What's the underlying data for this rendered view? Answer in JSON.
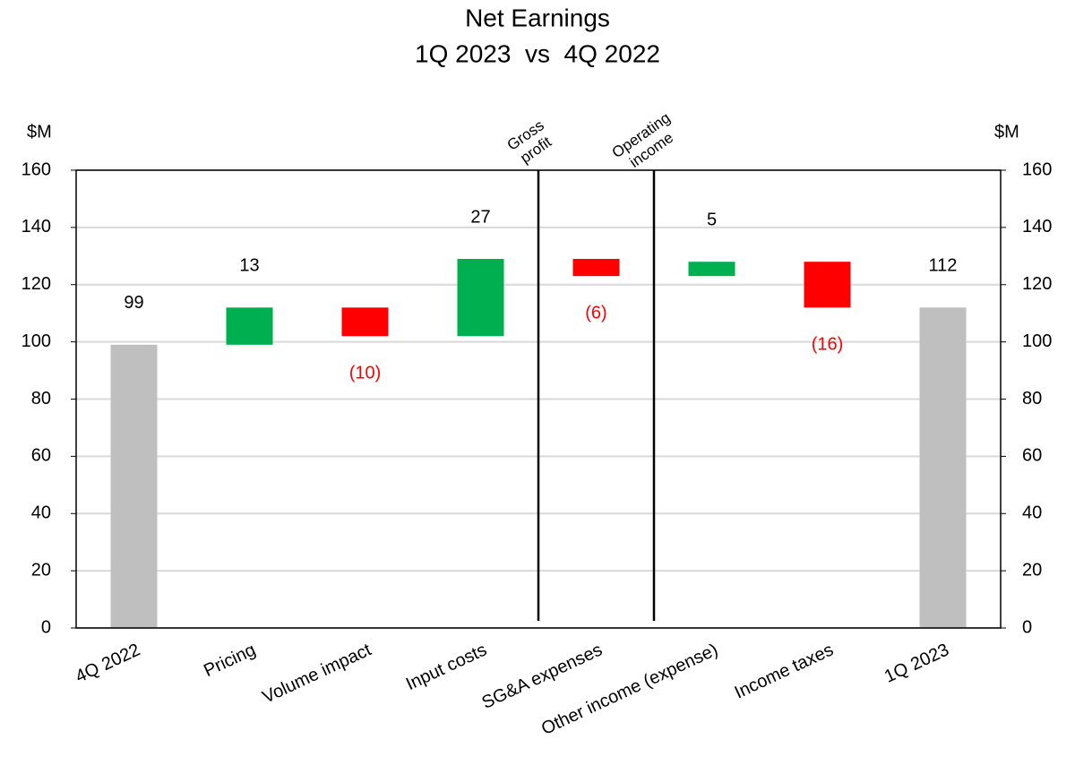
{
  "chart_data": {
    "type": "waterfall",
    "title": "Net Earnings",
    "subtitle": "1Q 2023  vs  4Q 2022",
    "ylabel": "$M",
    "y2label": "$M",
    "categories": [
      "4Q 2022",
      "Pricing",
      "Volume impact",
      "Input costs",
      "SG&A expenses",
      "Other income (expense)",
      "Income taxes",
      "1Q 2023"
    ],
    "values": [
      99,
      13,
      -10,
      27,
      -6,
      5,
      -16,
      112
    ],
    "value_labels": [
      "99",
      "13",
      "(10)",
      "27",
      "(6)",
      "5",
      "(16)",
      "112"
    ],
    "measure": [
      "absolute",
      "relative",
      "relative",
      "relative",
      "relative",
      "relative",
      "relative",
      "total"
    ],
    "colors": {
      "increase": "#00b050",
      "decrease": "#ff0000",
      "total": "#bfbfbf"
    },
    "value_label_colors": {
      "increase": "#000000",
      "decrease": "#ff0000",
      "total": "#000000"
    },
    "annotations": [
      [
        "Gross",
        "profit"
      ],
      [
        "Operating",
        "income"
      ]
    ],
    "ylim": [
      0,
      160
    ],
    "yticks": [
      0,
      20,
      40,
      60,
      80,
      100,
      120,
      140,
      160
    ],
    "y2lim": [
      0,
      160
    ],
    "y2ticks": [
      0,
      20,
      40,
      60,
      80,
      100,
      120,
      140,
      160
    ],
    "grid": true
  }
}
